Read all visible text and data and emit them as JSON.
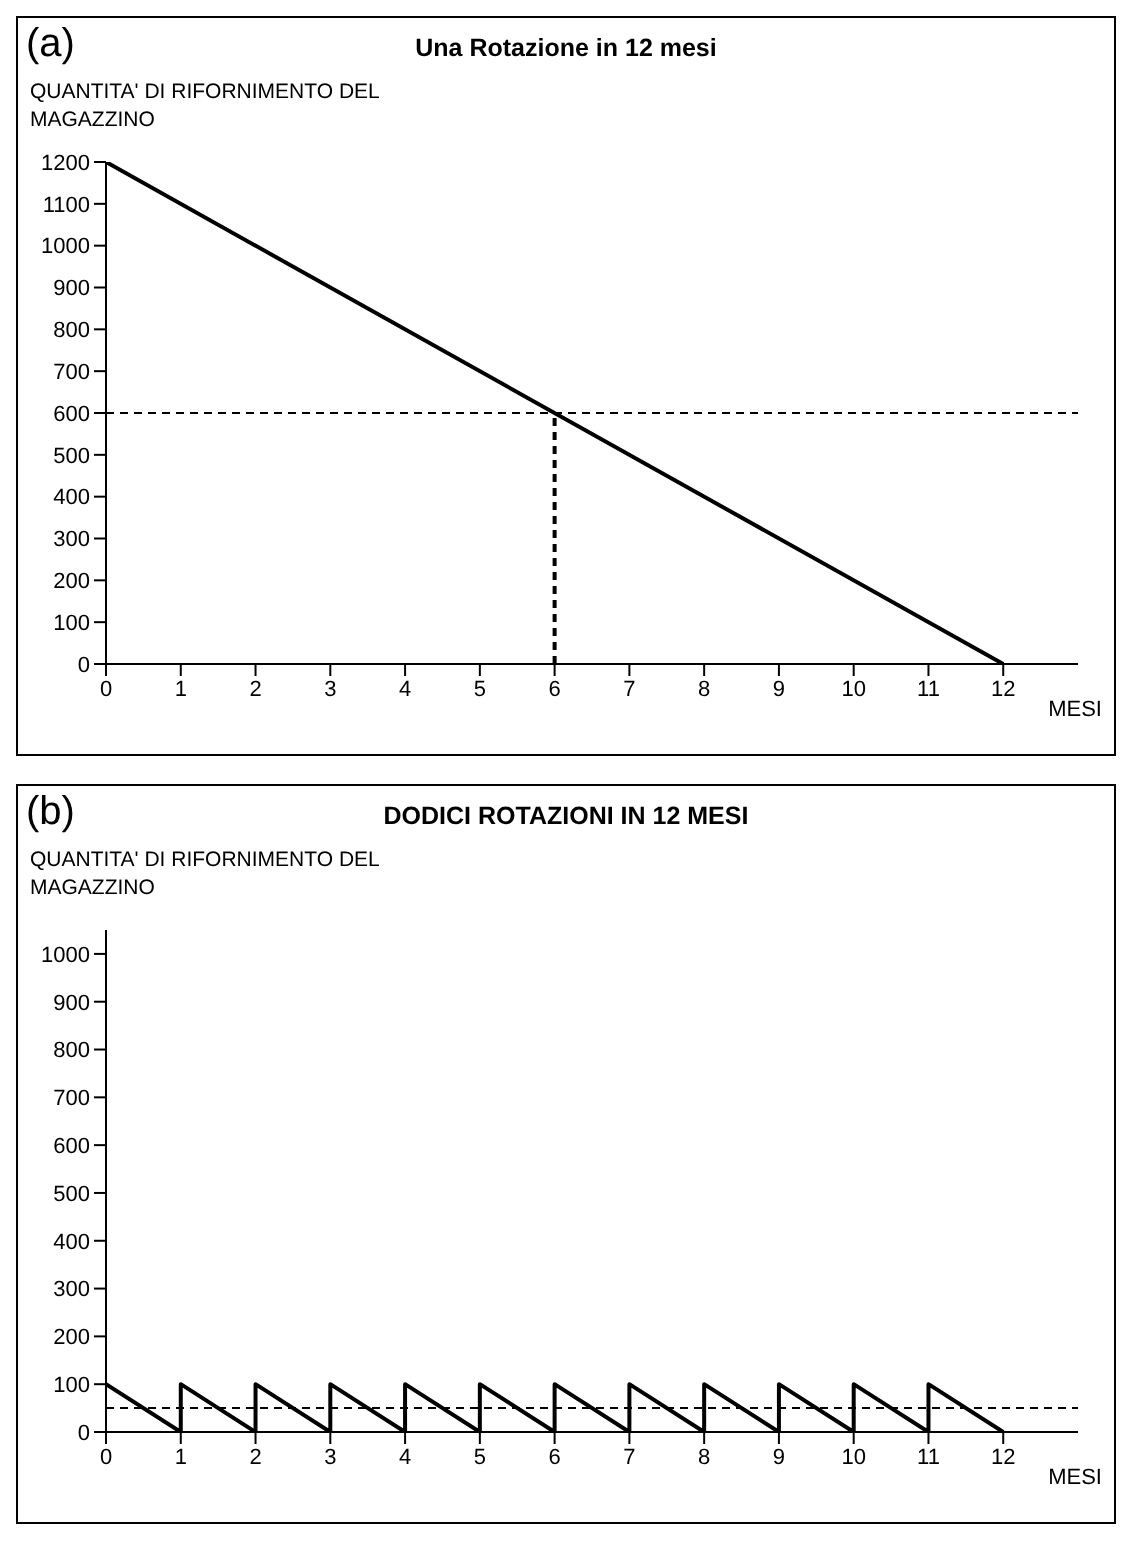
{
  "chart_data": [
    {
      "type": "line",
      "title": "Una Rotazione in 12 mesi",
      "annotations": [
        "(a)"
      ],
      "ylabel": "QUANTITA' DI RIFORNIMENTO DEL MAGAZZINO",
      "xlabel": "MESI",
      "xlim": [
        0,
        13
      ],
      "xticks": [
        0,
        1,
        2,
        3,
        4,
        5,
        6,
        7,
        8,
        9,
        10,
        11,
        12
      ],
      "ylim": [
        0,
        1200
      ],
      "yticks": [
        0,
        100,
        200,
        300,
        400,
        500,
        600,
        700,
        800,
        900,
        1000,
        1100,
        1200
      ],
      "grid": false,
      "legend": false,
      "marker": "none",
      "series": [
        {
          "color": "#000000",
          "line_style": "solid",
          "x": [
            0,
            12
          ],
          "values": [
            1200,
            0
          ]
        },
        {
          "color": "#000000",
          "line_style": "dashed",
          "x": [
            6,
            6
          ],
          "values": [
            0,
            600
          ]
        }
      ],
      "ref_lines": [
        {
          "axis": "y",
          "value": 600,
          "color": "#000000",
          "line_style": "dashed"
        }
      ]
    },
    {
      "type": "line",
      "title": "DODICI ROTAZIONI IN 12 MESI",
      "annotations": [
        "(b)"
      ],
      "ylabel": "QUANTITA' DI RIFORNIMENTO DEL MAGAZZINO",
      "xlabel": "MESI",
      "xlim": [
        0,
        13
      ],
      "xticks": [
        0,
        1,
        2,
        3,
        4,
        5,
        6,
        7,
        8,
        9,
        10,
        11,
        12
      ],
      "ylim": [
        0,
        1050
      ],
      "yticks": [
        0,
        100,
        200,
        300,
        400,
        500,
        600,
        700,
        800,
        900,
        1000
      ],
      "grid": false,
      "legend": false,
      "marker": "none",
      "series": [
        {
          "color": "#000000",
          "line_style": "solid",
          "x": [
            0,
            1,
            1,
            2,
            2,
            3,
            3,
            4,
            4,
            5,
            5,
            6,
            6,
            7,
            7,
            8,
            8,
            9,
            9,
            10,
            10,
            11,
            11,
            12
          ],
          "values": [
            100,
            0,
            100,
            0,
            100,
            0,
            100,
            0,
            100,
            0,
            100,
            0,
            100,
            0,
            100,
            0,
            100,
            0,
            100,
            0,
            100,
            0,
            100,
            0
          ]
        }
      ],
      "ref_lines": [
        {
          "axis": "y",
          "value": 50,
          "color": "#000000",
          "line_style": "dashed"
        }
      ]
    }
  ]
}
